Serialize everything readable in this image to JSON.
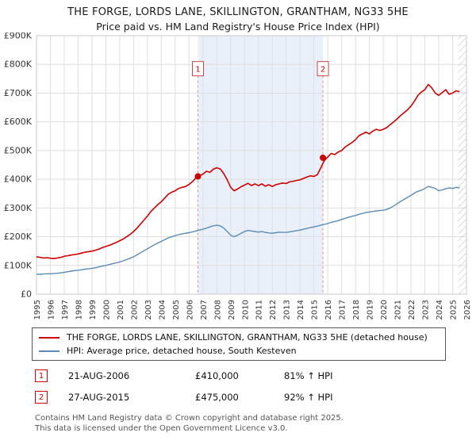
{
  "transactions": [
    {
      "num": "1",
      "date": "21-AUG-2006",
      "price": "£410,000",
      "hpi": "81% ↑ HPI"
    },
    {
      "num": "2",
      "date": "27-AUG-2015",
      "price": "£475,000",
      "hpi": "92% ↑ HPI"
    }
  ],
  "footer": {
    "line1": "Contains HM Land Registry data © Crown copyright and database right 2025.",
    "line2": "This data is licensed under the Open Government Licence v3.0."
  },
  "chart_data": {
    "type": "line",
    "title": "THE FORGE, LORDS LANE, SKILLINGTON, GRANTHAM, NG33 5HE",
    "subtitle": "Price paid vs. HM Land Registry's House Price Index (HPI)",
    "xlim": [
      1995,
      2026
    ],
    "ylim_k": [
      0,
      900
    ],
    "x_start": 1995,
    "x_step": 0.25,
    "x_ticks": [
      1995,
      1996,
      1997,
      1998,
      1999,
      2000,
      2001,
      2002,
      2003,
      2004,
      2005,
      2006,
      2007,
      2008,
      2009,
      2010,
      2011,
      2012,
      2013,
      2014,
      2015,
      2016,
      2017,
      2018,
      2019,
      2020,
      2021,
      2022,
      2023,
      2024,
      2025,
      2026
    ],
    "y_ticks": [
      {
        "v": 0,
        "label": "£0"
      },
      {
        "v": 100,
        "label": "£100K"
      },
      {
        "v": 200,
        "label": "£200K"
      },
      {
        "v": 300,
        "label": "£300K"
      },
      {
        "v": 400,
        "label": "£400K"
      },
      {
        "v": 500,
        "label": "£500K"
      },
      {
        "v": 600,
        "label": "£600K"
      },
      {
        "v": 700,
        "label": "£700K"
      },
      {
        "v": 800,
        "label": "£800K"
      },
      {
        "v": 900,
        "label": "£900K"
      }
    ],
    "series": [
      {
        "name": "price-paid",
        "label": "THE FORGE, LORDS LANE, SKILLINGTON, GRANTHAM, NG33 5HE (detached house)",
        "color": "#cc0000",
        "values_k": [
          130,
          128,
          126,
          127,
          125,
          124,
          126,
          128,
          132,
          134,
          136,
          138,
          140,
          143,
          146,
          148,
          150,
          153,
          157,
          162,
          166,
          170,
          175,
          180,
          186,
          192,
          200,
          208,
          218,
          230,
          244,
          258,
          272,
          288,
          300,
          312,
          322,
          335,
          348,
          355,
          360,
          368,
          372,
          375,
          382,
          392,
          405,
          412,
          418,
          428,
          424,
          435,
          440,
          436,
          420,
          398,
          372,
          360,
          366,
          374,
          380,
          386,
          378,
          384,
          378,
          384,
          376,
          381,
          375,
          381,
          384,
          387,
          385,
          391,
          393,
          396,
          398,
          403,
          408,
          412,
          410,
          416,
          440,
          465,
          478,
          490,
          486,
          495,
          500,
          512,
          520,
          528,
          538,
          552,
          558,
          564,
          558,
          568,
          574,
          570,
          574,
          580,
          590,
          600,
          610,
          622,
          632,
          642,
          655,
          672,
          692,
          704,
          712,
          730,
          718,
          700,
          692,
          702,
          712,
          696,
          700,
          708,
          705
        ]
      },
      {
        "name": "hpi",
        "label": "HPI: Average price, detached house, South Kesteven",
        "color": "#5b8ab5",
        "values_k": [
          70,
          69,
          70,
          71,
          71,
          72,
          73,
          74,
          76,
          78,
          80,
          82,
          83,
          85,
          87,
          88,
          90,
          92,
          95,
          98,
          100,
          103,
          106,
          109,
          112,
          116,
          120,
          125,
          130,
          137,
          144,
          151,
          158,
          165,
          172,
          178,
          184,
          190,
          196,
          200,
          204,
          207,
          210,
          212,
          214,
          217,
          220,
          223,
          226,
          230,
          234,
          238,
          240,
          238,
          230,
          218,
          205,
          200,
          205,
          212,
          218,
          222,
          220,
          218,
          216,
          218,
          215,
          213,
          212,
          214,
          216,
          215,
          215,
          217,
          219,
          221,
          223,
          226,
          229,
          232,
          234,
          237,
          240,
          243,
          246,
          250,
          253,
          256,
          260,
          264,
          268,
          271,
          274,
          278,
          281,
          284,
          286,
          288,
          290,
          291,
          292,
          295,
          300,
          307,
          315,
          323,
          330,
          337,
          344,
          352,
          358,
          362,
          368,
          375,
          372,
          368,
          360,
          363,
          367,
          370,
          368,
          372,
          370
        ]
      }
    ],
    "sales": [
      {
        "label": "1",
        "x": 2006.64,
        "value_k": 410
      },
      {
        "label": "2",
        "x": 2015.65,
        "value_k": 475
      }
    ],
    "owned_band": [
      2006.64,
      2015.65
    ],
    "hatch_band": [
      2025.4,
      2026
    ],
    "colors": {
      "band": "#eaf0fa",
      "grid": "#dedede",
      "border": "#c8c8c8",
      "dashed": "#e08a8a",
      "hatch": "#b8b8b8",
      "axis_text": "#333333",
      "flag_border": "#cc4444",
      "flag_text": "#cc0000"
    }
  }
}
